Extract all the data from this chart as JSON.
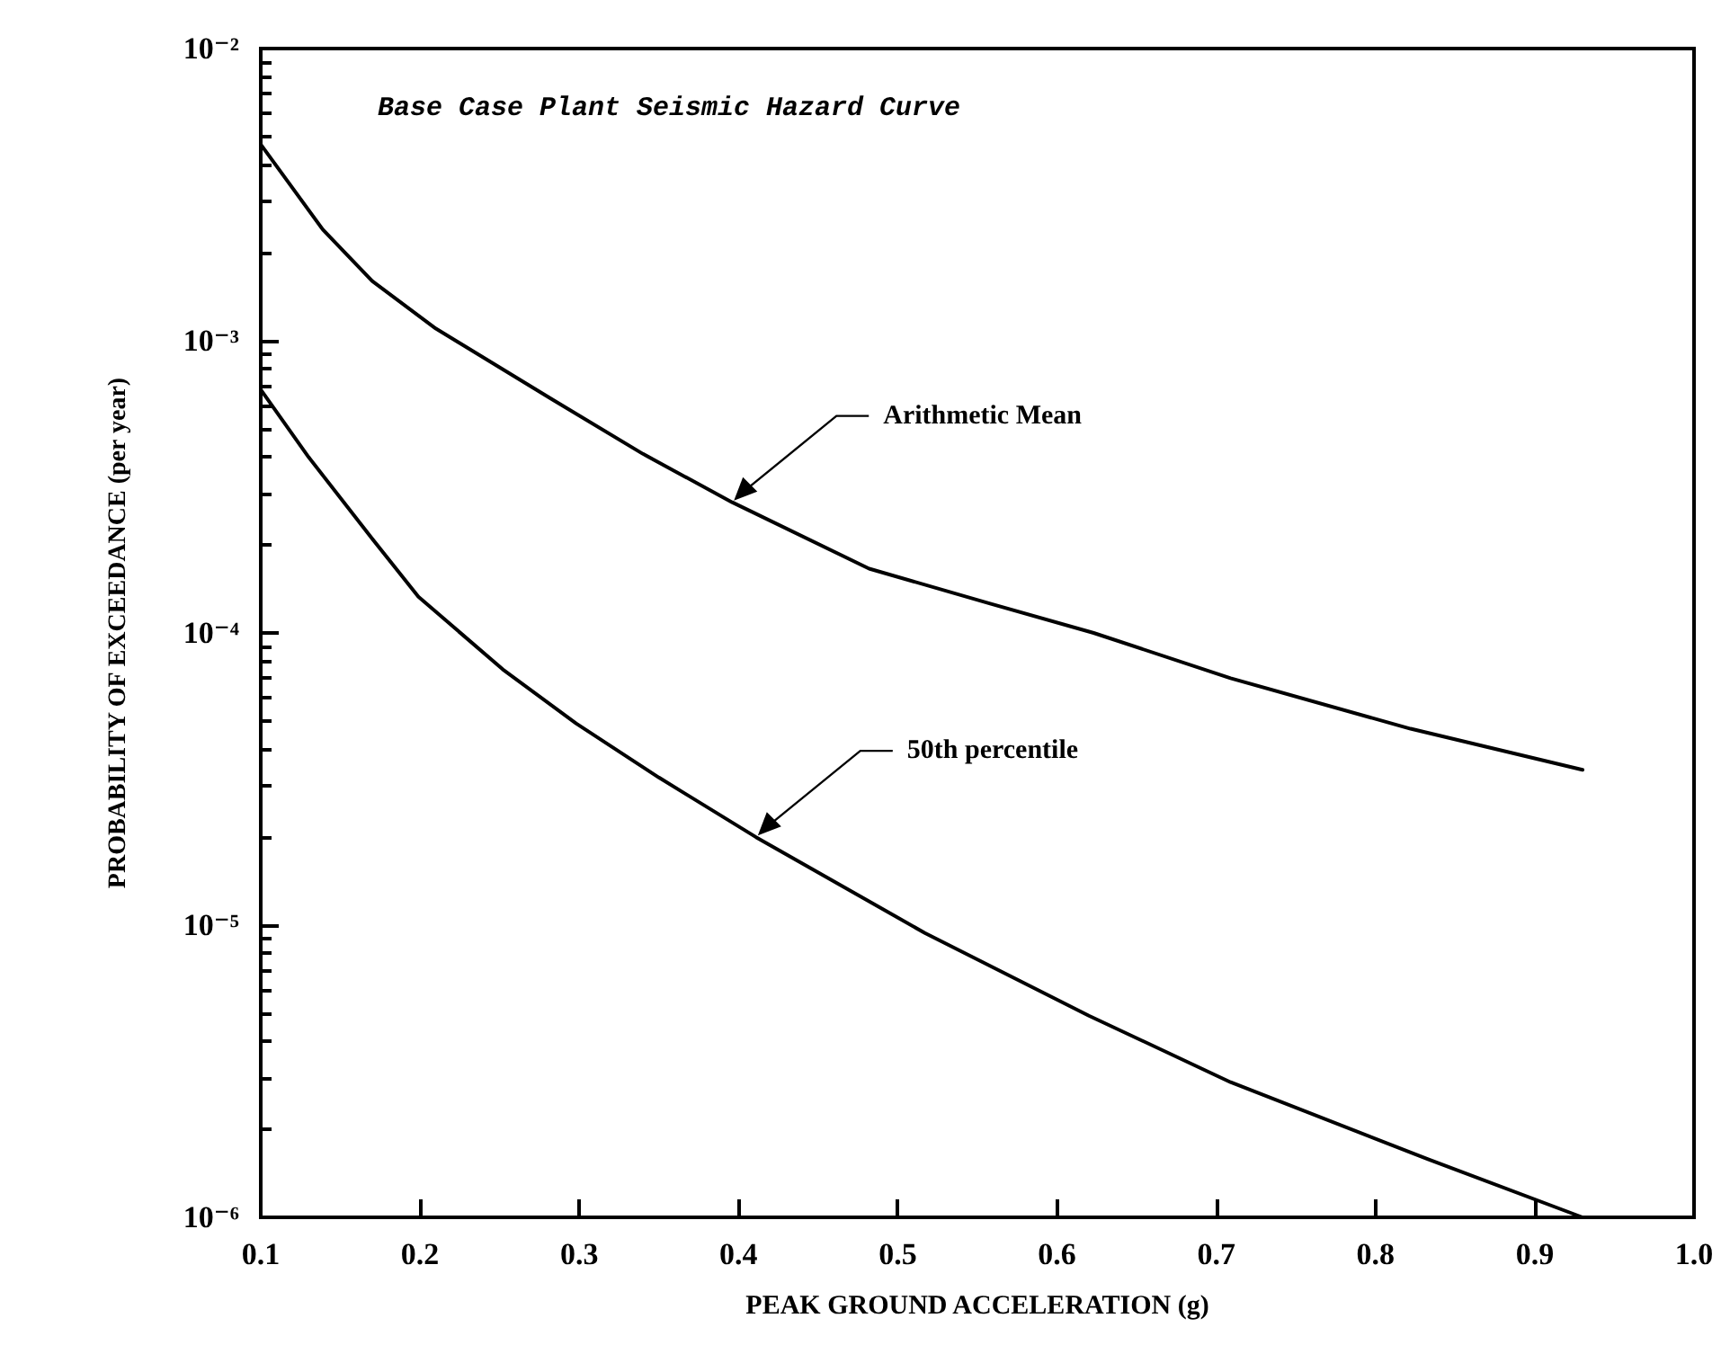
{
  "chart_data": {
    "type": "line",
    "title": "Base Case Plant Seismic Hazard Curve",
    "xlabel": "PEAK GROUND ACCELERATION (g)",
    "ylabel": "PROBABILITY OF EXCEEDANCE (per year)",
    "log": "y",
    "grid": false,
    "legend": false,
    "marker": "none",
    "line_style": "solid",
    "xlim": [
      0.1,
      1.0
    ],
    "xticks": [
      0.1,
      0.2,
      0.3,
      0.4,
      0.5,
      0.6,
      0.7,
      0.8,
      0.9,
      {
        "value": 1.0,
        "label": "1.0"
      }
    ],
    "ylim": [
      1e-06,
      0.01
    ],
    "yticks": [
      {
        "value": 1e-06,
        "label": "10⁻⁶"
      },
      {
        "value": 1e-05,
        "label": "10⁻⁵"
      },
      {
        "value": 0.0001,
        "label": "10⁻⁴"
      },
      {
        "value": 0.001,
        "label": "10⁻³"
      },
      {
        "value": 0.01,
        "label": "10⁻²"
      }
    ],
    "series": [
      {
        "color": "#000000",
        "x": [
          0.1,
          0.139,
          0.17,
          0.21,
          0.283,
          0.34,
          0.396,
          0.482,
          0.558,
          0.623,
          0.709,
          0.822,
          0.93
        ],
        "values": [
          0.0047,
          0.0024,
          0.0016,
          0.0011,
          0.00063,
          0.00041,
          0.00028,
          0.000166,
          0.000126,
          0.0001,
          7e-05,
          4.7e-05,
          3.4e-05
        ]
      },
      {
        "color": "#000000",
        "x": [
          0.1,
          0.13,
          0.17,
          0.199,
          0.252,
          0.298,
          0.35,
          0.411,
          0.517,
          0.62,
          0.709,
          0.833,
          0.93
        ],
        "values": [
          0.00068,
          0.0004,
          0.00021,
          0.000133,
          7.5e-05,
          4.9e-05,
          3.2e-05,
          2e-05,
          9.4e-06,
          4.9e-06,
          2.9e-06,
          1.58e-06,
          1e-06
        ]
      }
    ],
    "annotations": [
      {
        "text": "Arithmetic Mean",
        "x": 0.396,
        "y": 0.00028
      },
      {
        "text": "50th percentile",
        "x": 0.411,
        "y": 2e-05
      }
    ]
  }
}
